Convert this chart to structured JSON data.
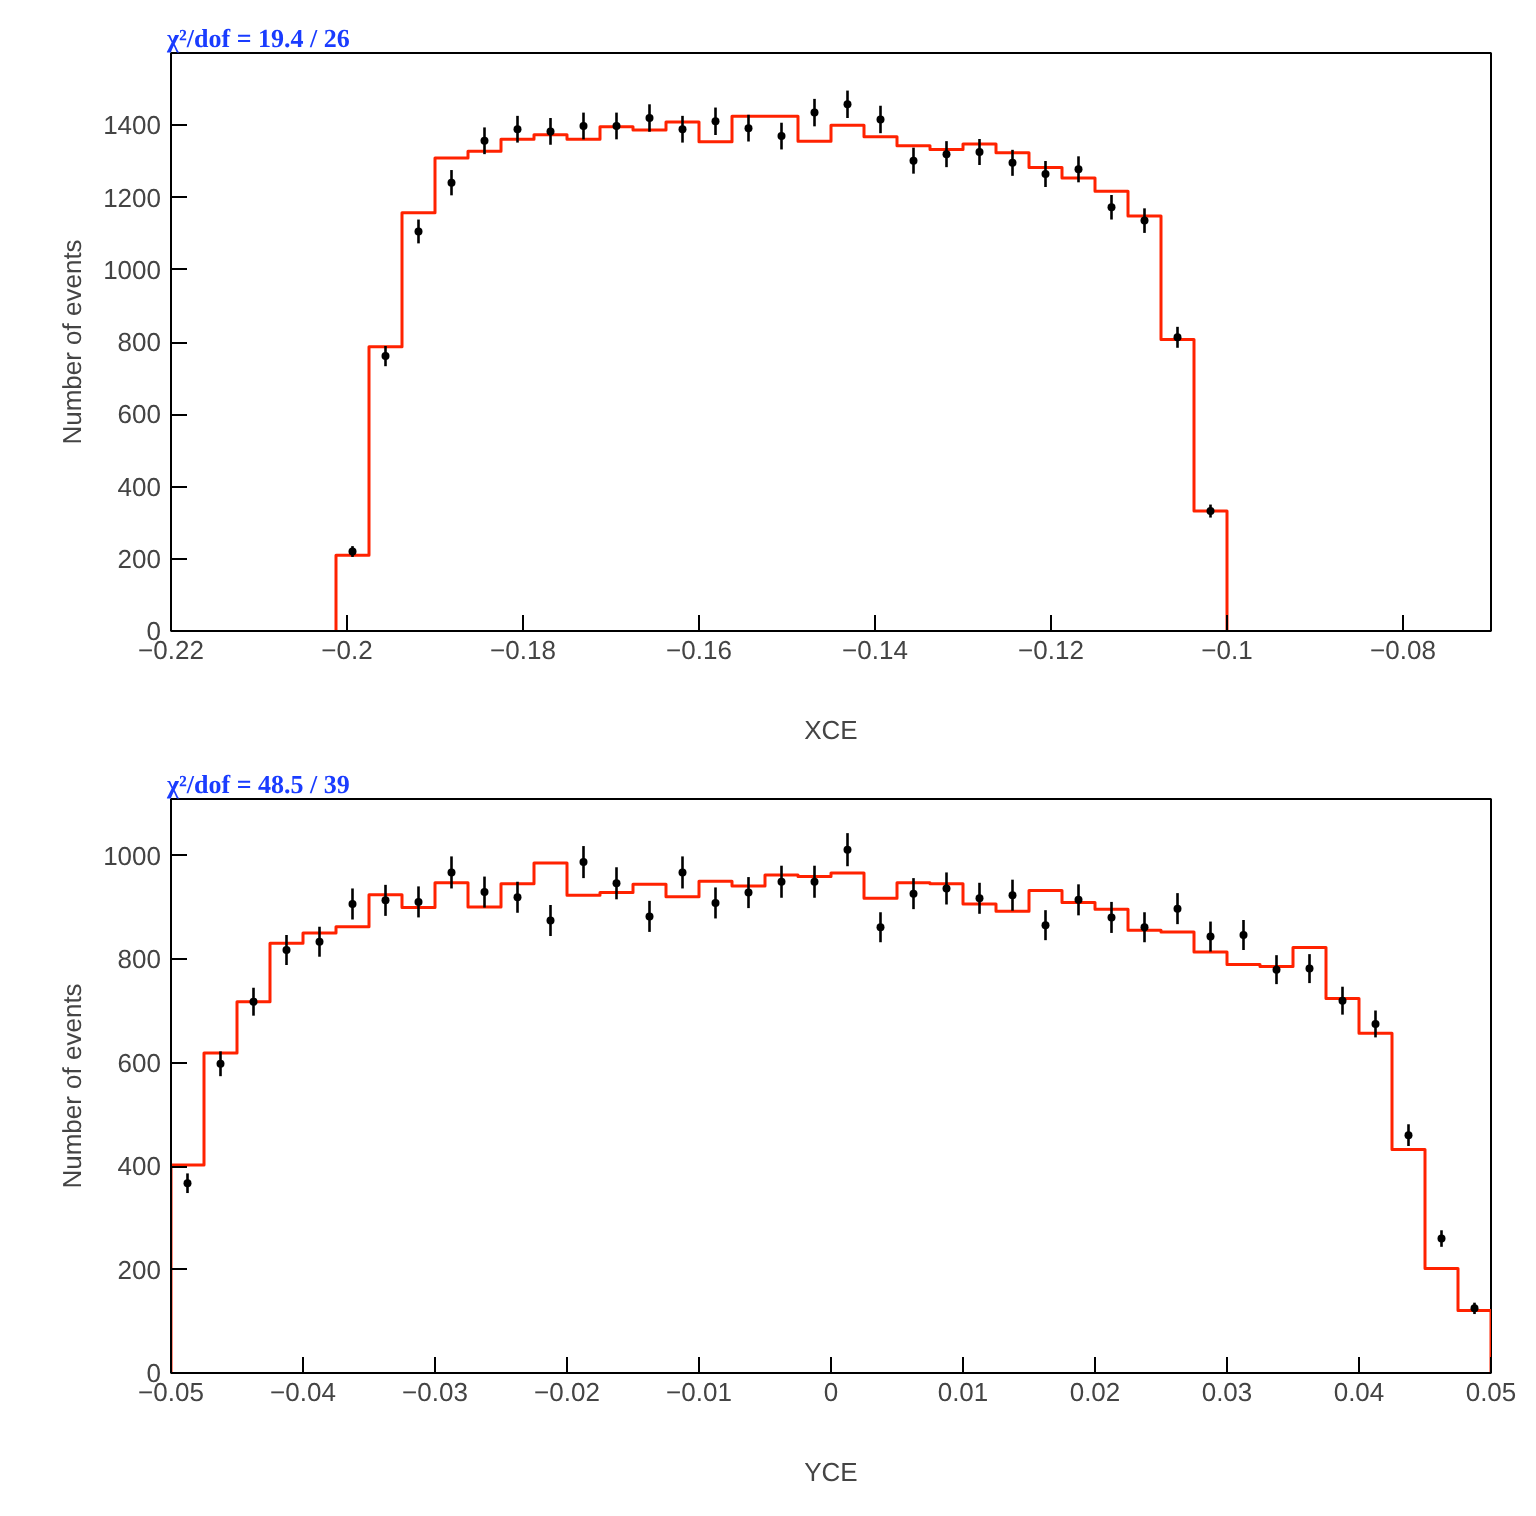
{
  "chart_data": [
    {
      "type": "histogram",
      "title": "χ²/dof = 19.4 / 26",
      "xlabel": "XCE",
      "ylabel": "Number of events",
      "xlim": [
        -0.22,
        -0.07
      ],
      "ylim": [
        0,
        1600
      ],
      "xticks": [
        {
          "value": -0.22,
          "label": "−0.22"
        },
        {
          "value": -0.2,
          "label": "−0.2"
        },
        {
          "value": -0.18,
          "label": "−0.18"
        },
        {
          "value": -0.16,
          "label": "−0.16"
        },
        {
          "value": -0.14,
          "label": "−0.14"
        },
        {
          "value": -0.12,
          "label": "−0.12"
        },
        {
          "value": -0.1,
          "label": "−0.1"
        },
        {
          "value": -0.08,
          "label": "−0.08"
        }
      ],
      "yticks": [
        0,
        200,
        400,
        600,
        800,
        1000,
        1200,
        1400
      ],
      "grid": false,
      "series": [
        {
          "type": "histogram",
          "color": "#ff2200",
          "bins": [
            -0.20125,
            -0.1975,
            -0.19375,
            -0.19,
            -0.18625,
            -0.1825,
            -0.17875,
            -0.175,
            -0.17125,
            -0.1675,
            -0.16375,
            -0.16,
            -0.15625,
            -0.1525,
            -0.14875,
            -0.145,
            -0.14125,
            -0.1375,
            -0.13375,
            -0.13,
            -0.12625,
            -0.1225,
            -0.11875,
            -0.115,
            -0.11125,
            -0.1075,
            -0.10375,
            -0.1
          ],
          "values": [
            210,
            787,
            1158,
            1309,
            1328,
            1361,
            1374,
            1361,
            1396,
            1387,
            1409,
            1354,
            1425,
            1425,
            1356,
            1400,
            1368,
            1343,
            1333,
            1348,
            1324,
            1283,
            1254,
            1217,
            1149,
            807,
            332
          ]
        },
        {
          "type": "scatter",
          "color": "#000000",
          "marker": "circle",
          "x": [
            -0.199375,
            -0.195625,
            -0.191875,
            -0.188125,
            -0.184375,
            -0.180625,
            -0.176875,
            -0.173125,
            -0.169375,
            -0.165625,
            -0.161875,
            -0.158125,
            -0.154375,
            -0.150625,
            -0.146875,
            -0.143125,
            -0.139375,
            -0.135625,
            -0.131875,
            -0.128125,
            -0.124375,
            -0.120625,
            -0.116875,
            -0.113125,
            -0.109375,
            -0.105625,
            -0.101875
          ],
          "values": [
            220,
            761,
            1106,
            1241,
            1357,
            1389,
            1383,
            1398,
            1398,
            1420,
            1389,
            1411,
            1392,
            1370,
            1435,
            1458,
            1416,
            1302,
            1320,
            1326,
            1296,
            1265,
            1278,
            1173,
            1136,
            813,
            332
          ],
          "errors": [
            15,
            28,
            33,
            35,
            37,
            37,
            37,
            37,
            37,
            38,
            37,
            38,
            37,
            37,
            38,
            38,
            38,
            36,
            36,
            36,
            36,
            36,
            36,
            34,
            34,
            29,
            18
          ]
        }
      ]
    },
    {
      "type": "histogram",
      "title": "χ²/dof = 48.5 / 39",
      "xlabel": "YCE",
      "ylabel": "Number of events",
      "xlim": [
        -0.05,
        0.05
      ],
      "ylim": [
        0,
        1110
      ],
      "xticks": [
        {
          "value": -0.05,
          "label": "−0.05"
        },
        {
          "value": -0.04,
          "label": "−0.04"
        },
        {
          "value": -0.03,
          "label": "−0.03"
        },
        {
          "value": -0.02,
          "label": "−0.02"
        },
        {
          "value": -0.01,
          "label": "−0.01"
        },
        0,
        0.01,
        0.02,
        0.03,
        0.04,
        0.05
      ],
      "yticks": [
        0,
        200,
        400,
        600,
        800,
        1000
      ],
      "grid": false,
      "series": [
        {
          "type": "histogram",
          "color": "#ff2200",
          "bins": [
            -0.05,
            -0.0475,
            -0.045,
            -0.0425,
            -0.04,
            -0.0375,
            -0.035,
            -0.0325,
            -0.03,
            -0.0275,
            -0.025,
            -0.0225,
            -0.02,
            -0.0175,
            -0.015,
            -0.0125,
            -0.01,
            -0.0075,
            -0.005,
            -0.0025,
            0,
            0.0025,
            0.005,
            0.0075,
            0.01,
            0.0125,
            0.015,
            0.0175,
            0.02,
            0.0225,
            0.025,
            0.0275,
            0.03,
            0.0325,
            0.035,
            0.0375,
            0.04,
            0.0425,
            0.045,
            0.0475,
            0.05
          ],
          "values": [
            402,
            619,
            718,
            831,
            851,
            863,
            925,
            900,
            948,
            901,
            946,
            986,
            924,
            929,
            945,
            921,
            951,
            942,
            963,
            960,
            967,
            918,
            948,
            946,
            907,
            893,
            933,
            910,
            897,
            856,
            853,
            814,
            790,
            786,
            823,
            724,
            657,
            432,
            202,
            121
          ]
        },
        {
          "type": "scatter",
          "color": "#000000",
          "marker": "circle",
          "x": [
            -0.04875,
            -0.04625,
            -0.04375,
            -0.04125,
            -0.03875,
            -0.03625,
            -0.03375,
            -0.03125,
            -0.02875,
            -0.02625,
            -0.02375,
            -0.02125,
            -0.01875,
            -0.01625,
            -0.01375,
            -0.01125,
            -0.00875,
            -0.00625,
            -0.00375,
            -0.00125,
            0.00125,
            0.00375,
            0.00625,
            0.00875,
            0.01125,
            0.01375,
            0.01625,
            0.01875,
            0.02125,
            0.02375,
            0.02625,
            0.02875,
            0.03125,
            0.03375,
            0.03625,
            0.03875,
            0.04125,
            0.04375,
            0.04625,
            0.04875
          ],
          "values": [
            367,
            598,
            718,
            818,
            834,
            907,
            914,
            911,
            968,
            930,
            920,
            875,
            988,
            947,
            883,
            968,
            909,
            929,
            950,
            950,
            1012,
            862,
            927,
            937,
            918,
            924,
            866,
            915,
            881,
            862,
            898,
            844,
            847,
            780,
            782,
            720,
            675,
            460,
            260,
            125
          ],
          "errors": [
            19,
            24,
            27,
            29,
            29,
            30,
            30,
            30,
            31,
            30,
            30,
            30,
            31,
            31,
            30,
            31,
            30,
            30,
            31,
            31,
            32,
            29,
            30,
            31,
            30,
            30,
            29,
            30,
            30,
            29,
            30,
            29,
            29,
            28,
            28,
            27,
            26,
            21,
            16,
            11
          ]
        }
      ]
    }
  ]
}
